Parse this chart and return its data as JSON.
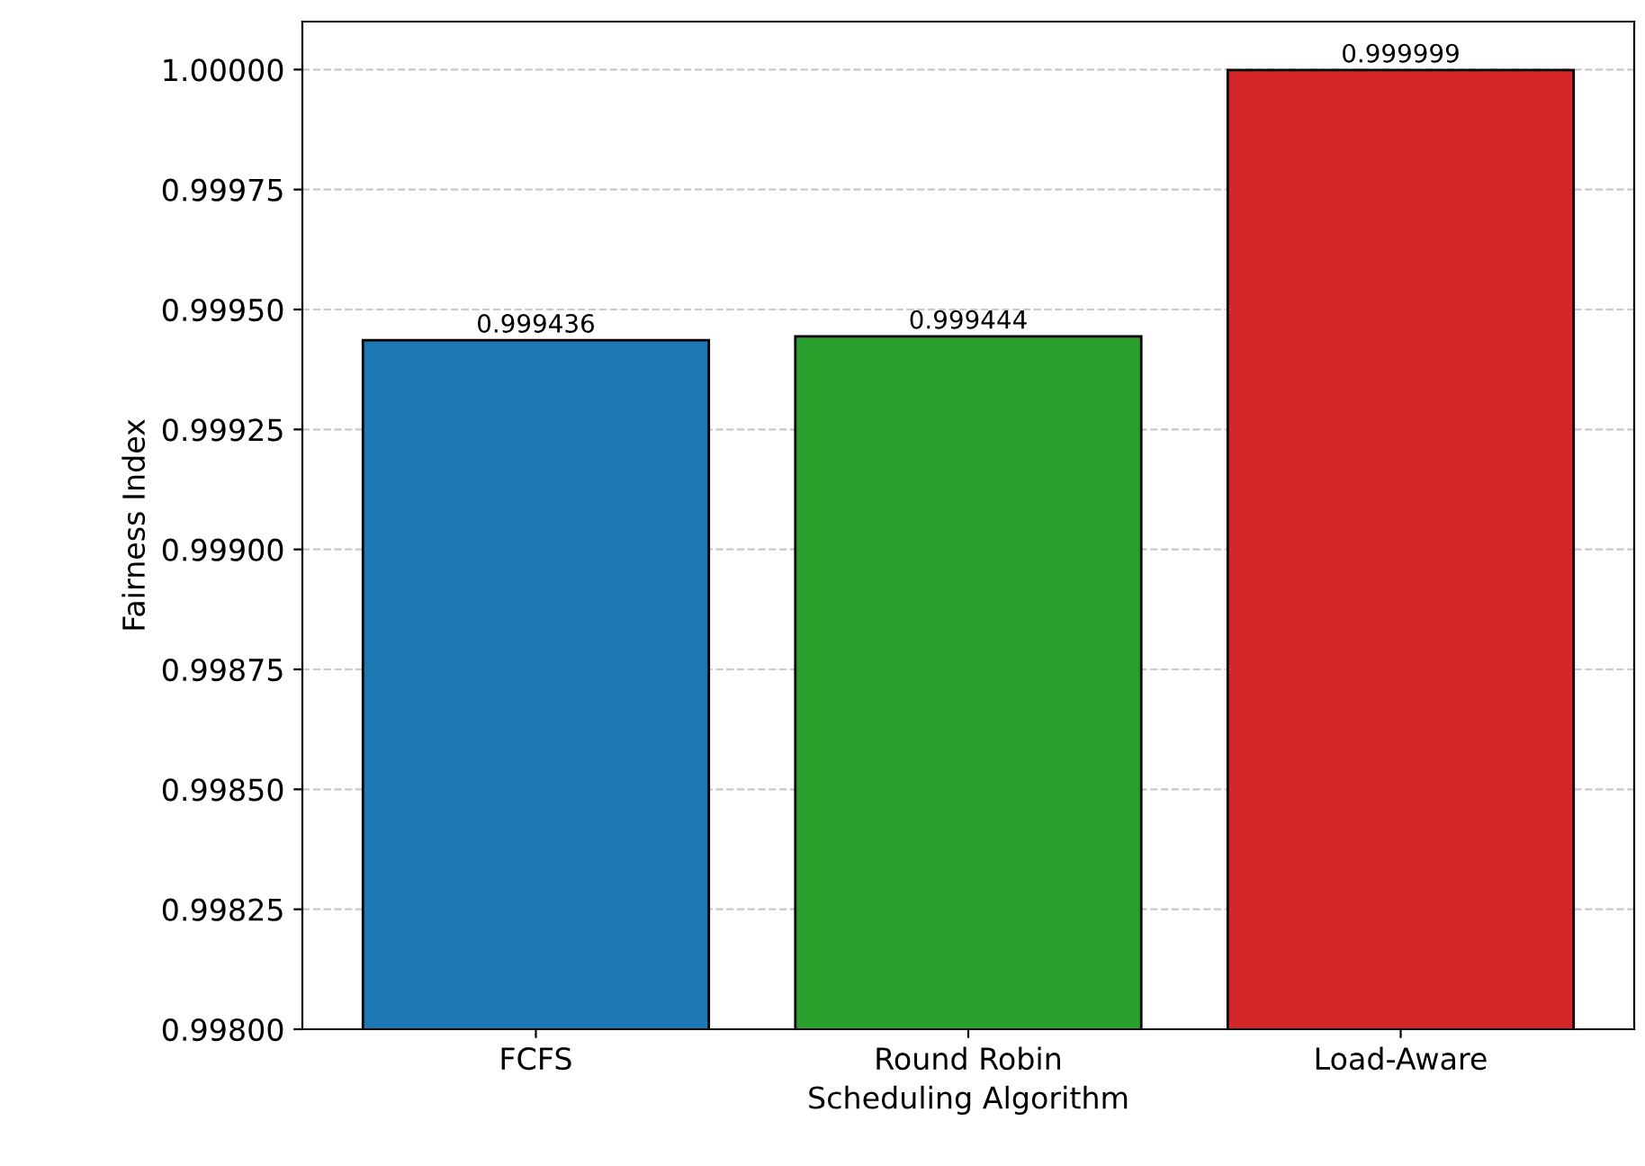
{
  "chart_data": {
    "type": "bar",
    "xlabel": "Scheduling Algorithm",
    "ylabel": "Fairness Index",
    "categories": [
      "FCFS",
      "Round Robin",
      "Load-Aware"
    ],
    "values": [
      0.999436,
      0.999444,
      0.999999
    ],
    "colors": [
      "#1f77b4",
      "#2ca02c",
      "#d62728"
    ],
    "data_labels": true,
    "ylim": [
      0.998,
      1.0001
    ],
    "yticks": [
      {
        "value": 0.998,
        "label": "0.99800"
      },
      {
        "value": 0.99825,
        "label": "0.99825"
      },
      {
        "value": 0.9985,
        "label": "0.99850"
      },
      {
        "value": 0.99875,
        "label": "0.99875"
      },
      {
        "value": 0.999,
        "label": "0.99900"
      },
      {
        "value": 0.99925,
        "label": "0.99925"
      },
      {
        "value": 0.9995,
        "label": "0.99950"
      },
      {
        "value": 0.99975,
        "label": "0.99975"
      },
      {
        "value": 1.0,
        "label": "1.00000"
      }
    ],
    "grid": "y"
  }
}
